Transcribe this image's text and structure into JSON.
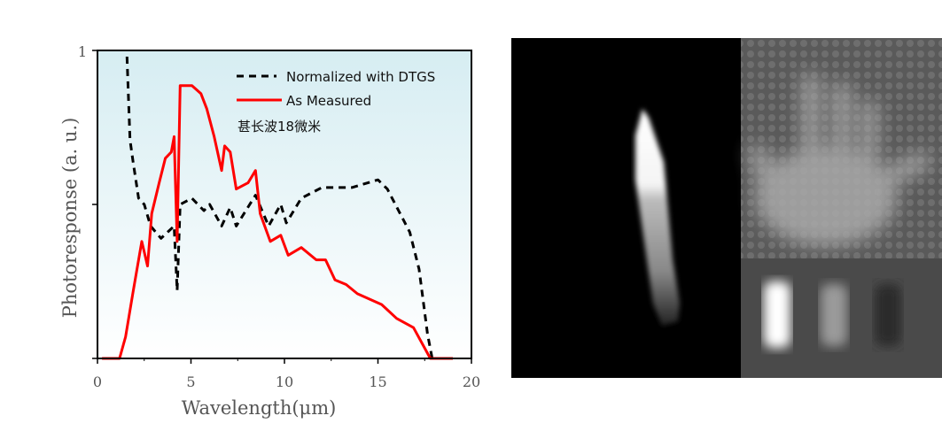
{
  "chart_data": {
    "type": "line",
    "title": "",
    "xlabel": "Wavelength(μm)",
    "ylabel": "Photoresponse (a. u.)",
    "xlim": [
      0,
      20
    ],
    "ylim": [
      0,
      1
    ],
    "x_ticks": [
      "0",
      "5",
      "10",
      "15",
      "20"
    ],
    "y_ticks": [
      "1"
    ],
    "y_minor_tick": 0.5,
    "grid": false,
    "legend_position": "top-right",
    "annotation": "甚长波18微米",
    "background": "gradient light cyan to white",
    "series": [
      {
        "name": "Normalized with DTGS",
        "style": "dashed",
        "color": "#000000",
        "points": [
          [
            1.58,
            0.98
          ],
          [
            1.74,
            0.71
          ],
          [
            1.9,
            0.64
          ],
          [
            2.2,
            0.52
          ],
          [
            2.5,
            0.5
          ],
          [
            2.84,
            0.43
          ],
          [
            3.4,
            0.39
          ],
          [
            4.1,
            0.43
          ],
          [
            4.26,
            0.22
          ],
          [
            4.42,
            0.5
          ],
          [
            5.05,
            0.52
          ],
          [
            5.69,
            0.48
          ],
          [
            6.0,
            0.5
          ],
          [
            6.64,
            0.43
          ],
          [
            7.1,
            0.49
          ],
          [
            7.42,
            0.43
          ],
          [
            8.45,
            0.53
          ],
          [
            9.15,
            0.43
          ],
          [
            9.8,
            0.5
          ],
          [
            10.1,
            0.44
          ],
          [
            10.9,
            0.52
          ],
          [
            12.0,
            0.555
          ],
          [
            13.6,
            0.555
          ],
          [
            15.0,
            0.58
          ],
          [
            15.5,
            0.55
          ],
          [
            16.7,
            0.41
          ],
          [
            17.2,
            0.29
          ],
          [
            17.65,
            0.08
          ],
          [
            17.9,
            0.0
          ],
          [
            19.0,
            0.0
          ]
        ]
      },
      {
        "name": "As Measured",
        "style": "solid",
        "color": "#ff0000",
        "points": [
          [
            0.24,
            0
          ],
          [
            1.18,
            0
          ],
          [
            1.5,
            0.07
          ],
          [
            1.9,
            0.215
          ],
          [
            2.37,
            0.38
          ],
          [
            2.68,
            0.3
          ],
          [
            2.9,
            0.47
          ],
          [
            3.3,
            0.57
          ],
          [
            3.63,
            0.65
          ],
          [
            3.95,
            0.67
          ],
          [
            4.1,
            0.72
          ],
          [
            4.26,
            0.38
          ],
          [
            4.42,
            0.886
          ],
          [
            5.05,
            0.886
          ],
          [
            5.53,
            0.86
          ],
          [
            5.85,
            0.81
          ],
          [
            6.24,
            0.72
          ],
          [
            6.64,
            0.61
          ],
          [
            6.8,
            0.69
          ],
          [
            7.1,
            0.67
          ],
          [
            7.42,
            0.55
          ],
          [
            8.05,
            0.57
          ],
          [
            8.45,
            0.61
          ],
          [
            8.7,
            0.47
          ],
          [
            9.24,
            0.38
          ],
          [
            9.8,
            0.4
          ],
          [
            10.2,
            0.335
          ],
          [
            10.9,
            0.36
          ],
          [
            11.7,
            0.32
          ],
          [
            12.2,
            0.32
          ],
          [
            12.7,
            0.255
          ],
          [
            13.3,
            0.24
          ],
          [
            13.9,
            0.21
          ],
          [
            15.2,
            0.175
          ],
          [
            16.0,
            0.13
          ],
          [
            16.9,
            0.1
          ],
          [
            17.8,
            0
          ],
          [
            19.0,
            0
          ]
        ]
      }
    ]
  },
  "images": [
    {
      "name": "ir-image-flame",
      "description_color": "#000000"
    },
    {
      "name": "ir-image-hand"
    },
    {
      "name": "ir-image-blackbody-targets"
    }
  ]
}
